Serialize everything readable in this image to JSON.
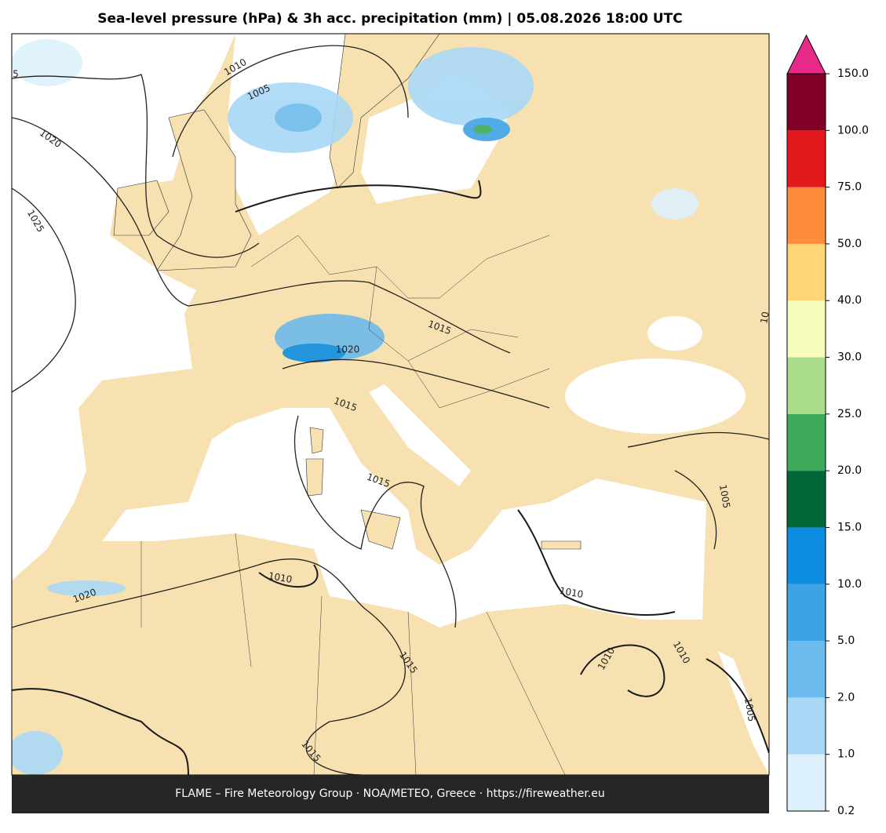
{
  "header": {
    "title": "Sea-level pressure (hPa) & 3h acc. precipitation (mm)  |  05.08.2026 18:00 UTC"
  },
  "map": {
    "land_color": "#f7e1b0",
    "sea_color": "#ffffff",
    "isobar_labels": [
      "1010",
      "1005",
      "1020",
      "1025",
      "5",
      "1020",
      "1015",
      "1015",
      "1015",
      "1010",
      "1020",
      "1010",
      "1015",
      "1010",
      "1010",
      "1005",
      "1005",
      "1015",
      "10"
    ]
  },
  "colorbar": {
    "ticks": [
      "0.2",
      "1.0",
      "2.0",
      "5.0",
      "10.0",
      "15.0",
      "20.0",
      "25.0",
      "30.0",
      "40.0",
      "50.0",
      "75.0",
      "100.0",
      "150.0"
    ],
    "colors": [
      "#ddf1fc",
      "#a8d8f6",
      "#6dbbec",
      "#3ea3e5",
      "#0d8de0",
      "#006837",
      "#3ea95a",
      "#abdc8c",
      "#f7fbbc",
      "#fed677",
      "#fd8d3c",
      "#e31a1c",
      "#800026"
    ],
    "extend_color": "#e7298a"
  },
  "footer": {
    "credit": "FLAME – Fire Meteorology Group · NOA/METEO, Greece · https://fireweather.eu"
  }
}
